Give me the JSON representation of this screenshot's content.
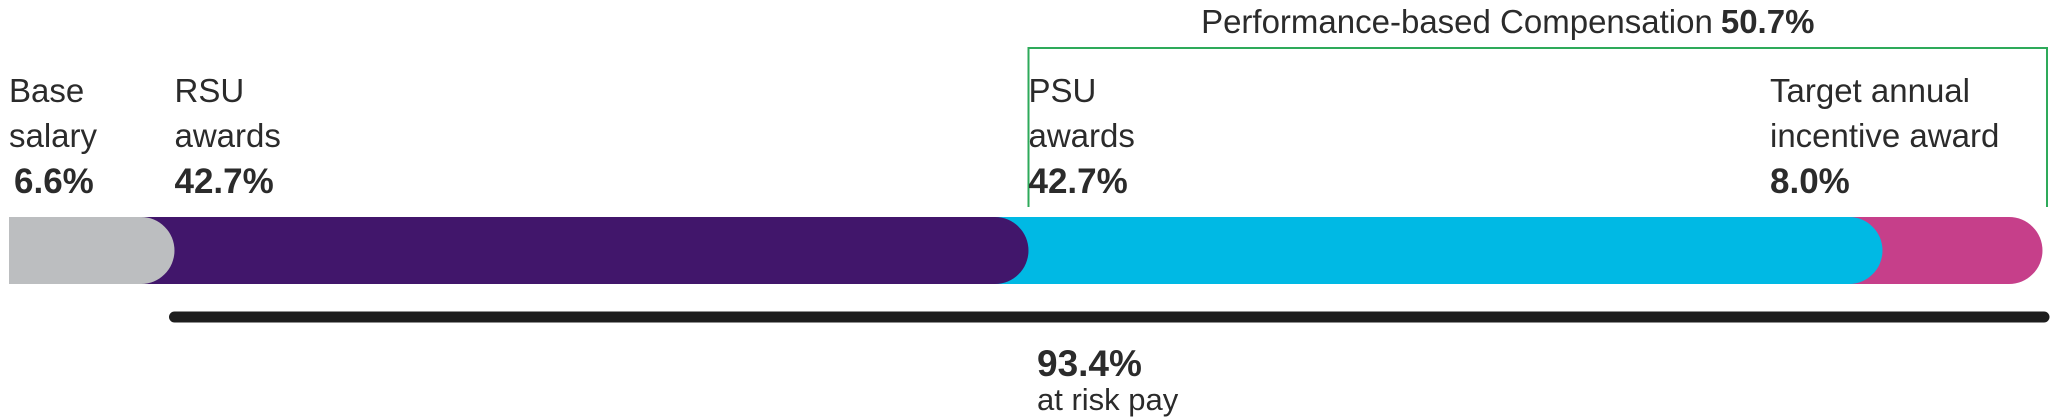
{
  "chart_data": {
    "type": "stacked-bar",
    "categories": [
      "Base salary",
      "RSU awards",
      "PSU awards",
      "Target annual incentive award"
    ],
    "values": [
      6.6,
      42.7,
      42.7,
      8.0
    ],
    "value_labels": [
      "6.6%",
      "42.7%",
      "42.7%",
      "8.0%"
    ],
    "colors": [
      "#bcbec0",
      "#41166b",
      "#00b9e4",
      "#c63f8a"
    ],
    "brackets": [
      {
        "label": "Performance-based Compensation",
        "value": 50.7,
        "value_label": "50.7%",
        "color": "#2eaa5a"
      },
      {
        "label": "at risk pay",
        "value": 93.4,
        "value_label": "93.4%",
        "color": "#1e1e1e"
      }
    ]
  }
}
